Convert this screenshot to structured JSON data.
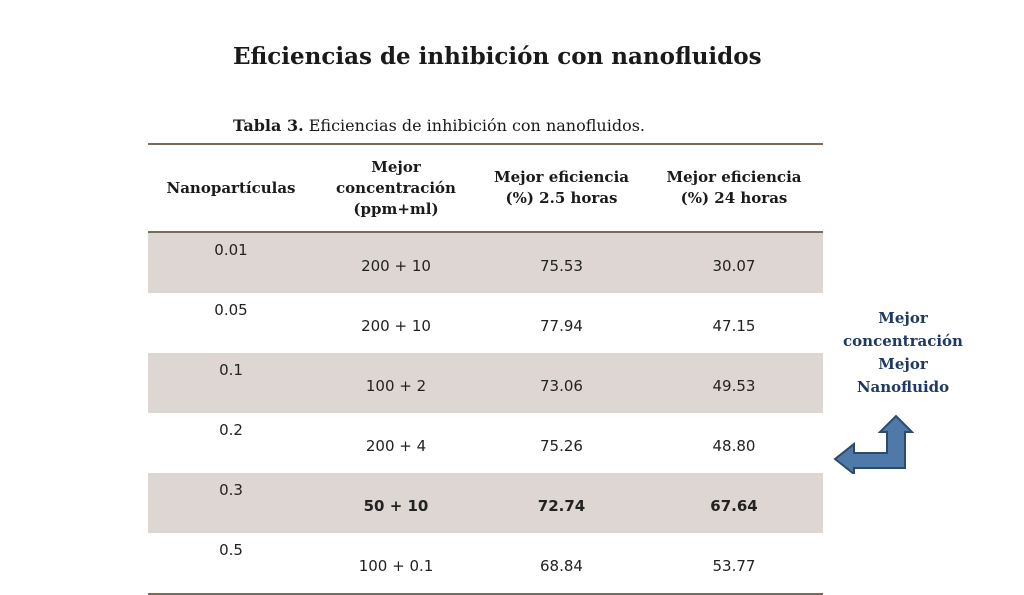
{
  "slide": {
    "title": "Eficiencias de inhibición con nanofluidos",
    "caption_bold": "Tabla 3.",
    "caption_text": " Eficiencias de inhibición con nanofluidos."
  },
  "table": {
    "headers": [
      "Nanopartículas",
      "Mejor concentración (ppm+ml)",
      "Mejor eficiencia (%) 2.5 horas",
      "Mejor eficiencia (%) 24 horas"
    ],
    "rows": [
      [
        "0.01",
        "200 + 10",
        "75.53",
        "30.07"
      ],
      [
        "0.05",
        "200 + 10",
        "77.94",
        "47.15"
      ],
      [
        "0.1",
        "100 + 2",
        "73.06",
        "49.53"
      ],
      [
        "0.2",
        "200 + 4",
        "75.26",
        "48.80"
      ],
      [
        "0.3",
        "50 + 10",
        "72.74",
        "67.64"
      ],
      [
        "0.5",
        "100 + 0.1",
        "68.84",
        "53.77"
      ]
    ]
  },
  "annotation": {
    "lines": [
      "Mejor",
      "concentración",
      "Mejor",
      "Nanofluido"
    ],
    "arrow_icon": "bent-arrow-left-icon"
  },
  "colors": {
    "row_shade": "#ddd6d2",
    "rule": "#7a6a5e",
    "annotation_text": "#1f3864",
    "arrow_fill": "#4f79a8",
    "arrow_stroke": "#2e4a6b"
  }
}
